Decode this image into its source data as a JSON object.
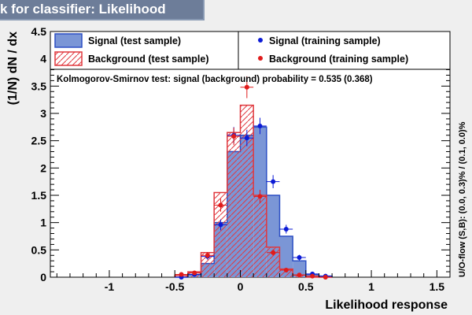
{
  "window": {
    "title": "k for classifier: Likelihood"
  },
  "chart_data": {
    "type": "histogram",
    "xlabel": "Likelihood response",
    "ylabel": "(1/N) dN / dx",
    "side_label": "U/O-flow (S,B): (0.0, 0.3)% / (0.1, 0.0)%",
    "ks_text": "Kolmogorov-Smirnov test: signal (background) probability = 0.535 (0.368)",
    "xlim": [
      -1.45,
      1.6
    ],
    "ylim": [
      0,
      4.5
    ],
    "x_ticks": [
      -1,
      -0.5,
      0,
      0.5,
      1,
      1.5
    ],
    "x_tick_labels": [
      "-1",
      "-0.5",
      "0",
      "0.5",
      "1",
      "1.5"
    ],
    "y_ticks": [
      0,
      0.5,
      1,
      1.5,
      2,
      2.5,
      3,
      3.5,
      4,
      4.5
    ],
    "y_tick_labels": [
      "0",
      "0.5",
      "1",
      "1.5",
      "2",
      "2.5",
      "3",
      "3.5",
      "4",
      "4.5"
    ],
    "bin_edges": [
      -0.5,
      -0.4,
      -0.3,
      -0.2,
      -0.1,
      0.0,
      0.1,
      0.2,
      0.3,
      0.4,
      0.5,
      0.6,
      0.7
    ],
    "series": [
      {
        "name": "Signal (test sample)",
        "kind": "filled-hist",
        "color": "#2c4fc4",
        "fill": "#7b96d6",
        "values": [
          0.0,
          0.05,
          0.25,
          1.0,
          2.3,
          2.6,
          2.75,
          1.5,
          0.75,
          0.3,
          0.05,
          0.02
        ]
      },
      {
        "name": "Background (test sample)",
        "kind": "hatched-hist",
        "color": "#e0383e",
        "values": [
          0.03,
          0.1,
          0.45,
          1.55,
          2.65,
          3.15,
          1.5,
          0.55,
          0.15,
          0.04,
          0.0,
          0.0
        ]
      },
      {
        "name": "Signal (training sample)",
        "kind": "points",
        "color": "#0b1ad6",
        "x": [
          -0.45,
          -0.35,
          -0.25,
          -0.15,
          -0.05,
          0.05,
          0.15,
          0.25,
          0.35,
          0.45,
          0.55,
          0.65
        ],
        "y": [
          0.0,
          0.05,
          0.38,
          0.96,
          2.6,
          2.55,
          2.77,
          1.75,
          0.88,
          0.36,
          0.06,
          0.02
        ],
        "err": [
          0.0,
          0.03,
          0.06,
          0.1,
          0.15,
          0.15,
          0.15,
          0.12,
          0.08,
          0.05,
          0.02,
          0.01
        ]
      },
      {
        "name": "Background (training sample)",
        "kind": "points",
        "color": "#e01b1b",
        "x": [
          -0.45,
          -0.35,
          -0.25,
          -0.15,
          -0.05,
          0.05,
          0.15,
          0.25,
          0.35,
          0.45,
          0.55,
          0.65
        ],
        "y": [
          0.05,
          0.08,
          0.4,
          1.32,
          2.58,
          3.48,
          1.48,
          0.45,
          0.13,
          0.04,
          0.02,
          0.0
        ],
        "err": [
          0.02,
          0.03,
          0.06,
          0.12,
          0.16,
          0.2,
          0.12,
          0.06,
          0.04,
          0.02,
          0.01,
          0.0
        ]
      }
    ]
  }
}
